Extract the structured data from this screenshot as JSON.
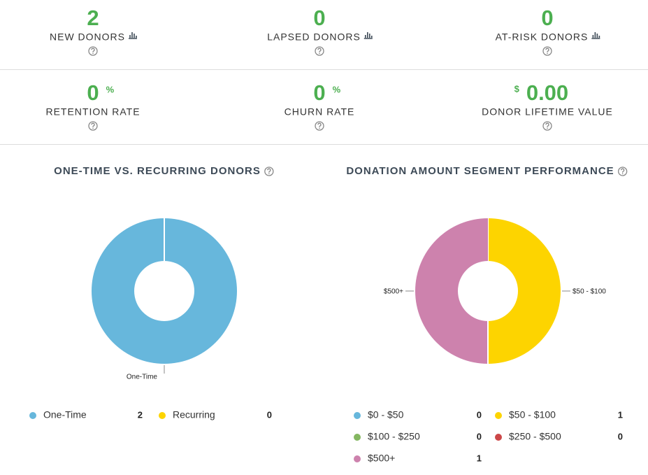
{
  "stats": [
    {
      "value": 2,
      "label": "NEW DONORS"
    },
    {
      "value": 0,
      "label": "LAPSED DONORS"
    },
    {
      "value": 0,
      "label": "AT-RISK DONORS"
    }
  ],
  "rates": [
    {
      "value": 0,
      "unit": "%",
      "label": "RETENTION RATE"
    },
    {
      "value": 0,
      "unit": "%",
      "label": "CHURN RATE"
    },
    {
      "value": {
        "value": 0,
        "label": "0.00"
      },
      "unit": "$",
      "label": "DONOR LIFETIME VALUE"
    }
  ],
  "chart_data": [
    {
      "type": "donut",
      "title": "ONE-TIME VS. RECURRING DONORS",
      "categories": [
        "One-Time",
        "Recurring"
      ],
      "values": [
        2,
        0
      ],
      "colors": [
        "#67b7dc",
        "#fdd400"
      ]
    },
    {
      "type": "donut",
      "title": "DONATION AMOUNT SEGMENT PERFORMANCE",
      "categories": [
        "$0 - $50",
        "$50 - $100",
        "$100 - $250",
        "$250 - $500",
        "$500+"
      ],
      "values": [
        0,
        1,
        0,
        0,
        1
      ],
      "colors": [
        "#67b7dc",
        "#fdd400",
        "#84b761",
        "#cc4748",
        "#cd82ad"
      ]
    }
  ]
}
